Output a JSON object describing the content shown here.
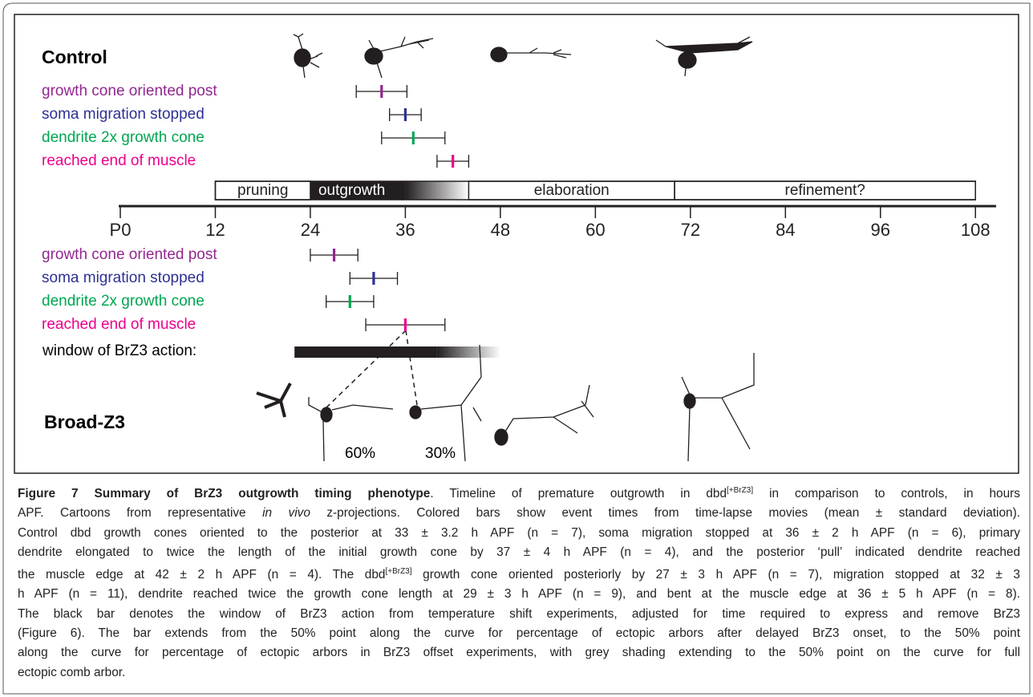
{
  "chart_data": {
    "type": "timeline",
    "xlim": [
      0,
      110
    ],
    "xticks": [
      {
        "value": 0,
        "label": "P0"
      },
      12,
      24,
      36,
      48,
      60,
      72,
      84,
      96,
      108
    ],
    "phases": [
      {
        "name": "pruning",
        "start": 12,
        "end": 24
      },
      {
        "name": "outgrowth",
        "start": 24,
        "dark_end": 36,
        "end": 44
      },
      {
        "name": "elaboration",
        "start": 44,
        "end": 70
      },
      {
        "name": "refinement?",
        "start": 70,
        "end": 108
      }
    ],
    "groups": [
      {
        "name": "Control",
        "series": [
          {
            "name": "growth cone oriented post",
            "color": "#92278f",
            "value": 33,
            "error": 3.2
          },
          {
            "name": "soma migration stopped",
            "color": "#2e3192",
            "value": 36,
            "error": 2
          },
          {
            "name": "dendrite 2x growth cone",
            "color": "#00a651",
            "value": 37,
            "error": 4
          },
          {
            "name": "reached end of muscle",
            "color": "#ec008c",
            "value": 42,
            "error": 2
          }
        ]
      },
      {
        "name": "Broad-Z3",
        "series": [
          {
            "name": "growth cone oriented post",
            "color": "#92278f",
            "value": 27,
            "error": 3
          },
          {
            "name": "soma migration stopped",
            "color": "#2e3192",
            "value": 32,
            "error": 3
          },
          {
            "name": "dendrite 2x growth cone",
            "color": "#00a651",
            "value": 29,
            "error": 3
          },
          {
            "name": "reached end of muscle",
            "color": "#ec008c",
            "value": 36,
            "error": 5
          }
        ]
      }
    ],
    "window": {
      "label": "window of BrZ3 action:",
      "start": 22,
      "solid_end": 40,
      "end": 48
    },
    "annotations": [
      "60%",
      "30%"
    ]
  },
  "caption": {
    "lines": [
      [
        {
          "text": "Figure 7 Summary of BrZ3 outgrowth timing phenotype",
          "style": "bold"
        },
        {
          "text": ". Timeline of premature outgrowth in dbd",
          "style": "plain"
        },
        {
          "text": "[+BrZ3]",
          "style": "sup"
        },
        {
          "text": " in comparison to controls, in hours",
          "style": "plain"
        }
      ],
      [
        {
          "text": "APF. Cartoons from representative ",
          "style": "plain"
        },
        {
          "text": "in vivo",
          "style": "italic"
        },
        {
          "text": " z-projections. Colored bars show event times from time-lapse movies (mean ± standard deviation).",
          "style": "plain"
        }
      ],
      [
        {
          "text": "Control dbd growth cones oriented to the posterior at 33 ± 3.2 h APF (n = 7), soma migration stopped at 36 ± 2 h APF (n = 6), primary",
          "style": "plain"
        }
      ],
      [
        {
          "text": "dendrite elongated to twice the length of the initial growth cone by 37 ± 4 h APF (n = 4), and the posterior ‘pull’ indicated dendrite reached",
          "style": "plain"
        }
      ],
      [
        {
          "text": "the muscle edge at 42 ± 2 h APF (n = 4). The dbd",
          "style": "plain"
        },
        {
          "text": "[+BrZ3]",
          "style": "sup"
        },
        {
          "text": " growth cone oriented posteriorly by 27 ± 3 h APF (n = 7), migration stopped at 32 ± 3",
          "style": "plain"
        }
      ],
      [
        {
          "text": "h APF (n = 11), dendrite reached twice the growth cone length at 29 ± 3 h APF (n = 9), and bent at the muscle edge at 36 ± 5 h APF (n = 8).",
          "style": "plain"
        }
      ],
      [
        {
          "text": "The black bar denotes the window of BrZ3 action from temperature shift experiments, adjusted for time required to express and remove BrZ3",
          "style": "plain"
        }
      ],
      [
        {
          "text": "(Figure 6). The bar extends from the 50% point along the curve for percentage of ectopic arbors after delayed BrZ3 onset, to the 50% point",
          "style": "plain"
        }
      ],
      [
        {
          "text": "along the curve for percentage of ectopic arbors in BrZ3 offset experiments, with grey shading extending to the 50% point on the curve for full",
          "style": "plain"
        }
      ],
      [
        {
          "text": "ectopic comb arbor.",
          "style": "plain"
        }
      ]
    ]
  }
}
